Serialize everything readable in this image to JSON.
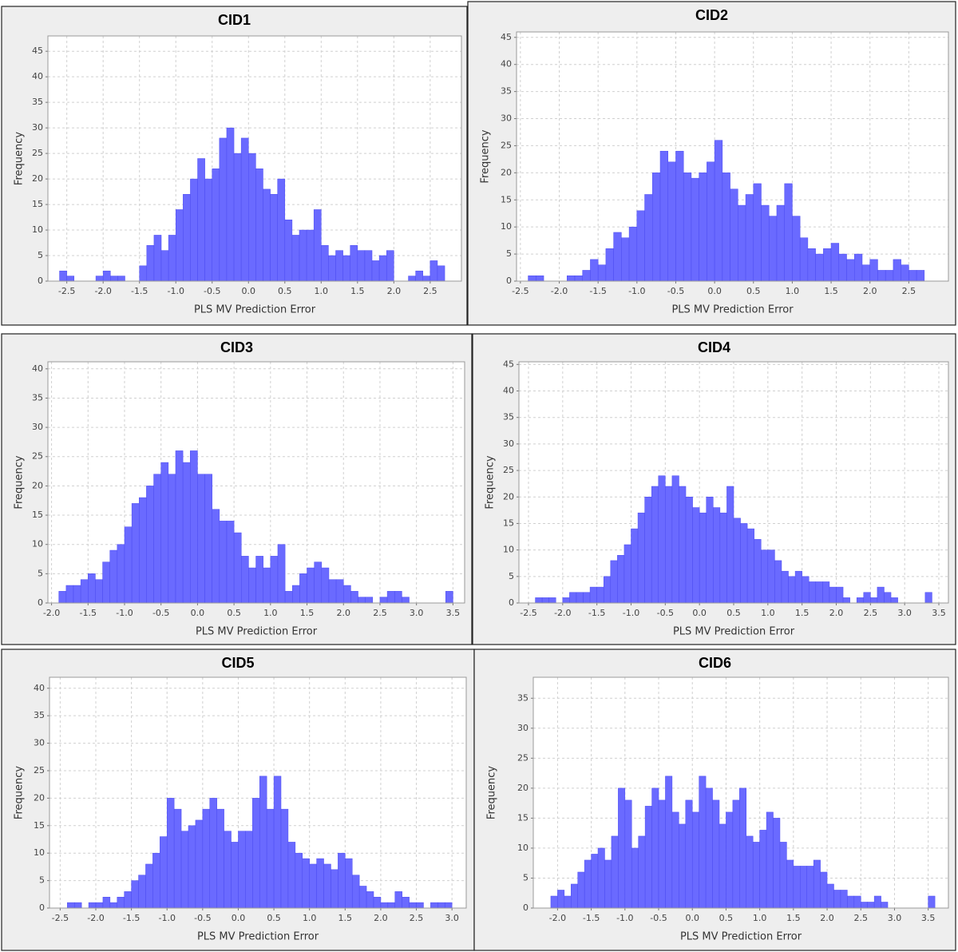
{
  "chart_data": [
    {
      "type": "histogram",
      "title": "CID1",
      "x_label": "PLS MV Prediction Error",
      "y_label": "Frequency",
      "color": "#6a6aff",
      "grid": true,
      "bins": [
        -2.6,
        -2.5,
        -2.4,
        -2.3,
        -2.2,
        -2.1,
        -2.0,
        -1.9,
        -1.8,
        -1.7,
        -1.6,
        -1.5,
        -1.4,
        -1.3,
        -1.2,
        -1.1,
        -1.0,
        -0.9,
        -0.8,
        -0.7,
        -0.6,
        -0.5,
        -0.4,
        -0.3,
        -0.2,
        -0.1,
        0,
        0.1,
        0.2,
        0.3,
        0.4,
        0.5,
        0.6,
        0.7,
        0.8,
        0.9,
        1.0,
        1.1,
        1.2,
        1.3,
        1.4,
        1.5,
        1.6,
        1.7,
        1.8,
        1.9,
        2.0,
        2.1,
        2.2,
        2.3,
        2.4,
        2.5,
        2.6,
        2.7
      ],
      "counts": [
        2,
        1,
        0,
        0,
        0,
        1,
        2,
        1,
        1,
        0,
        0,
        3,
        7,
        9,
        6,
        9,
        14,
        17,
        20,
        24,
        20,
        22,
        28,
        30,
        25,
        28,
        25,
        22,
        18,
        17,
        20,
        12,
        9,
        10,
        10,
        14,
        7,
        5,
        6,
        5,
        7,
        6,
        6,
        4,
        5,
        6,
        0,
        0,
        1,
        2,
        1,
        4,
        3
      ],
      "xlim": [
        -2.76,
        2.93
      ],
      "ylim": [
        0,
        48
      ],
      "xticks": [
        -2.5,
        {
          "value": -2,
          "label": "-2.0"
        },
        -1.5,
        {
          "value": -1,
          "label": "-1.0"
        },
        -0.5,
        {
          "value": 0,
          "label": "0.0"
        },
        0.5,
        {
          "value": 1,
          "label": "1.0"
        },
        1.5,
        {
          "value": 2,
          "label": "2.0"
        },
        2.5
      ],
      "yticks": [
        0,
        5,
        10,
        15,
        20,
        25,
        30,
        35,
        40,
        45
      ]
    },
    {
      "type": "histogram",
      "title": "CID2",
      "x_label": "PLS MV Prediction Error",
      "y_label": "Frequency",
      "color": "#6a6aff",
      "grid": true,
      "bins": [
        -2.4,
        -2.3,
        -2.2,
        -2.1,
        -2.0,
        -1.9,
        -1.8,
        -1.7,
        -1.6,
        -1.5,
        -1.4,
        -1.3,
        -1.2,
        -1.1,
        -1.0,
        -0.9,
        -0.8,
        -0.7,
        -0.6,
        -0.5,
        -0.4,
        -0.3,
        -0.2,
        -0.1,
        0,
        0.1,
        0.2,
        0.3,
        0.4,
        0.5,
        0.6,
        0.7,
        0.8,
        0.9,
        1.0,
        1.1,
        1.2,
        1.3,
        1.4,
        1.5,
        1.6,
        1.7,
        1.8,
        1.9,
        2.0,
        2.1,
        2.2,
        2.3,
        2.4,
        2.5,
        2.6,
        2.7
      ],
      "counts": [
        1,
        1,
        0,
        0,
        0,
        1,
        1,
        2,
        4,
        3,
        6,
        9,
        8,
        10,
        13,
        16,
        20,
        24,
        22,
        24,
        20,
        19,
        20,
        22,
        26,
        20,
        17,
        14,
        16,
        18,
        14,
        12,
        14,
        18,
        12,
        8,
        6,
        5,
        6,
        7,
        5,
        4,
        5,
        3,
        4,
        2,
        2,
        4,
        3,
        2,
        2
      ],
      "xlim": [
        -2.55,
        3.01
      ],
      "ylim": [
        0,
        46
      ],
      "xticks": [
        -2.5,
        {
          "value": -2,
          "label": "-2.0"
        },
        -1.5,
        {
          "value": -1,
          "label": "-1.0"
        },
        -0.5,
        {
          "value": 0,
          "label": "0.0"
        },
        0.5,
        {
          "value": 1,
          "label": "1.0"
        },
        1.5,
        {
          "value": 2,
          "label": "2.0"
        },
        2.5
      ],
      "yticks": [
        0,
        5,
        10,
        15,
        20,
        25,
        30,
        35,
        40,
        45
      ]
    },
    {
      "type": "histogram",
      "title": "CID3",
      "x_label": "PLS MV Prediction Error",
      "y_label": "Frequency",
      "color": "#6a6aff",
      "grid": true,
      "bins": [
        -1.9,
        -1.8,
        -1.7,
        -1.6,
        -1.5,
        -1.4,
        -1.3,
        -1.2,
        -1.1,
        -1.0,
        -0.9,
        -0.8,
        -0.7,
        -0.6,
        -0.5,
        -0.4,
        -0.3,
        -0.2,
        -0.1,
        0,
        0.1,
        0.2,
        0.3,
        0.4,
        0.5,
        0.6,
        0.7,
        0.8,
        0.9,
        1.0,
        1.1,
        1.2,
        1.3,
        1.4,
        1.5,
        1.6,
        1.7,
        1.8,
        1.9,
        2.0,
        2.1,
        2.2,
        2.3,
        2.4,
        2.5,
        2.6,
        2.7,
        2.8,
        2.9,
        3.0,
        3.1,
        3.2,
        3.3,
        3.4,
        3.5
      ],
      "counts": [
        2,
        3,
        3,
        4,
        5,
        4,
        7,
        9,
        10,
        13,
        17,
        18,
        20,
        22,
        24,
        22,
        26,
        24,
        26,
        22,
        22,
        16,
        14,
        14,
        12,
        8,
        6,
        8,
        6,
        8,
        10,
        2,
        3,
        5,
        6,
        7,
        6,
        4,
        4,
        3,
        2,
        1,
        1,
        0,
        1,
        2,
        2,
        1,
        0,
        0,
        0,
        0,
        0,
        2
      ],
      "xlim": [
        -2.05,
        3.66
      ],
      "ylim": [
        0,
        41.2
      ],
      "xticks": [
        {
          "value": -2,
          "label": "-2.0"
        },
        -1.5,
        {
          "value": -1,
          "label": "-1.0"
        },
        -0.5,
        {
          "value": 0,
          "label": "0.0"
        },
        0.5,
        {
          "value": 1,
          "label": "1.0"
        },
        1.5,
        {
          "value": 2,
          "label": "2.0"
        },
        2.5,
        {
          "value": 3,
          "label": "3.0"
        },
        3.5
      ],
      "yticks": [
        0,
        5,
        10,
        15,
        20,
        25,
        30,
        35,
        40
      ]
    },
    {
      "type": "histogram",
      "title": "CID4",
      "x_label": "PLS MV Prediction Error",
      "y_label": "Frequency",
      "color": "#6a6aff",
      "grid": true,
      "bins": [
        -2.4,
        -2.3,
        -2.2,
        -2.1,
        -2.0,
        -1.9,
        -1.8,
        -1.7,
        -1.6,
        -1.5,
        -1.4,
        -1.3,
        -1.2,
        -1.1,
        -1.0,
        -0.9,
        -0.8,
        -0.7,
        -0.6,
        -0.5,
        -0.4,
        -0.3,
        -0.2,
        -0.1,
        0,
        0.1,
        0.2,
        0.3,
        0.4,
        0.5,
        0.6,
        0.7,
        0.8,
        0.9,
        1.0,
        1.1,
        1.2,
        1.3,
        1.4,
        1.5,
        1.6,
        1.7,
        1.8,
        1.9,
        2.0,
        2.1,
        2.2,
        2.3,
        2.4,
        2.5,
        2.6,
        2.7,
        2.8,
        2.9,
        3.0,
        3.1,
        3.2,
        3.3,
        3.4
      ],
      "counts": [
        1,
        1,
        1,
        0,
        1,
        2,
        2,
        2,
        3,
        3,
        5,
        8,
        9,
        11,
        14,
        17,
        20,
        22,
        24,
        22,
        24,
        22,
        20,
        18,
        17,
        20,
        18,
        17,
        22,
        16,
        15,
        14,
        12,
        10,
        10,
        8,
        6,
        5,
        6,
        5,
        4,
        4,
        4,
        3,
        3,
        1,
        0,
        1,
        2,
        1,
        3,
        2,
        1,
        0,
        0,
        0,
        0,
        2
      ],
      "xlim": [
        -2.64,
        3.64
      ],
      "ylim": [
        0,
        45.5
      ],
      "xticks": [
        -2.5,
        {
          "value": -2,
          "label": "-2.0"
        },
        -1.5,
        {
          "value": -1,
          "label": "-1.0"
        },
        -0.5,
        {
          "value": 0,
          "label": "0.0"
        },
        0.5,
        {
          "value": 1,
          "label": "1.0"
        },
        1.5,
        {
          "value": 2,
          "label": "2.0"
        },
        2.5,
        {
          "value": 3,
          "label": "3.0"
        },
        3.5
      ],
      "yticks": [
        0,
        5,
        10,
        15,
        20,
        25,
        30,
        35,
        40,
        45
      ]
    },
    {
      "type": "histogram",
      "title": "CID5",
      "x_label": "PLS MV Prediction Error",
      "y_label": "Frequency",
      "color": "#6a6aff",
      "grid": true,
      "bins": [
        -2.5,
        -2.4,
        -2.3,
        -2.2,
        -2.1,
        -2.0,
        -1.9,
        -1.8,
        -1.7,
        -1.6,
        -1.5,
        -1.4,
        -1.3,
        -1.2,
        -1.1,
        -1.0,
        -0.9,
        -0.8,
        -0.7,
        -0.6,
        -0.5,
        -0.4,
        -0.3,
        -0.2,
        -0.1,
        0,
        0.1,
        0.2,
        0.3,
        0.4,
        0.5,
        0.6,
        0.7,
        0.8,
        0.9,
        1.0,
        1.1,
        1.2,
        1.3,
        1.4,
        1.5,
        1.6,
        1.7,
        1.8,
        1.9,
        2.0,
        2.1,
        2.2,
        2.3,
        2.4,
        2.5,
        2.6,
        2.7,
        2.8,
        2.9,
        3.0
      ],
      "counts": [
        0,
        1,
        1,
        0,
        1,
        1,
        2,
        1,
        2,
        3,
        5,
        6,
        8,
        10,
        13,
        20,
        18,
        14,
        15,
        16,
        18,
        20,
        18,
        14,
        12,
        14,
        14,
        20,
        24,
        18,
        24,
        18,
        12,
        10,
        9,
        8,
        9,
        8,
        7,
        10,
        9,
        6,
        4,
        3,
        2,
        1,
        1,
        3,
        2,
        1,
        1,
        0,
        1,
        1,
        1
      ],
      "xlim": [
        -2.65,
        3.2
      ],
      "ylim": [
        0,
        42
      ],
      "xticks": [
        -2.5,
        {
          "value": -2,
          "label": "-2.0"
        },
        -1.5,
        {
          "value": -1,
          "label": "-1.0"
        },
        -0.5,
        {
          "value": 0,
          "label": "0.0"
        },
        0.5,
        {
          "value": 1,
          "label": "1.0"
        },
        1.5,
        {
          "value": 2,
          "label": "2.0"
        },
        2.5,
        {
          "value": 3,
          "label": "3.0"
        }
      ],
      "yticks": [
        0,
        5,
        10,
        15,
        20,
        25,
        30,
        35,
        40
      ]
    },
    {
      "type": "histogram",
      "title": "CID6",
      "x_label": "PLS MV Prediction Error",
      "y_label": "Frequency",
      "color": "#6a6aff",
      "grid": true,
      "bins": [
        -2.2,
        -2.1,
        -2.0,
        -1.9,
        -1.8,
        -1.7,
        -1.6,
        -1.5,
        -1.4,
        -1.3,
        -1.2,
        -1.1,
        -1.0,
        -0.9,
        -0.8,
        -0.7,
        -0.6,
        -0.5,
        -0.4,
        -0.3,
        -0.2,
        -0.1,
        0,
        0.1,
        0.2,
        0.3,
        0.4,
        0.5,
        0.6,
        0.7,
        0.8,
        0.9,
        1.0,
        1.1,
        1.2,
        1.3,
        1.4,
        1.5,
        1.6,
        1.7,
        1.8,
        1.9,
        2.0,
        2.1,
        2.2,
        2.3,
        2.4,
        2.5,
        2.6,
        2.7,
        2.8,
        2.9,
        3.0,
        3.1,
        3.2,
        3.3,
        3.4,
        3.5,
        3.6
      ],
      "counts": [
        0,
        2,
        3,
        2,
        4,
        6,
        8,
        9,
        10,
        8,
        12,
        20,
        18,
        10,
        12,
        17,
        20,
        18,
        22,
        16,
        14,
        18,
        16,
        22,
        20,
        18,
        14,
        16,
        18,
        20,
        12,
        11,
        13,
        16,
        15,
        11,
        8,
        7,
        7,
        7,
        8,
        6,
        4,
        3,
        3,
        2,
        2,
        1,
        1,
        2,
        1,
        0,
        0,
        0,
        0,
        0,
        0,
        2
      ],
      "xlim": [
        -2.36,
        3.8
      ],
      "ylim": [
        0,
        38.5
      ],
      "xticks": [
        {
          "value": -2,
          "label": "-2.0"
        },
        -1.5,
        {
          "value": -1,
          "label": "-1.0"
        },
        -0.5,
        {
          "value": 0,
          "label": "0.0"
        },
        0.5,
        {
          "value": 1,
          "label": "1.0"
        },
        1.5,
        {
          "value": 2,
          "label": "2.0"
        },
        2.5,
        {
          "value": 3,
          "label": "3.0"
        },
        3.5
      ],
      "yticks": [
        0,
        5,
        10,
        15,
        20,
        25,
        30,
        35
      ]
    }
  ]
}
